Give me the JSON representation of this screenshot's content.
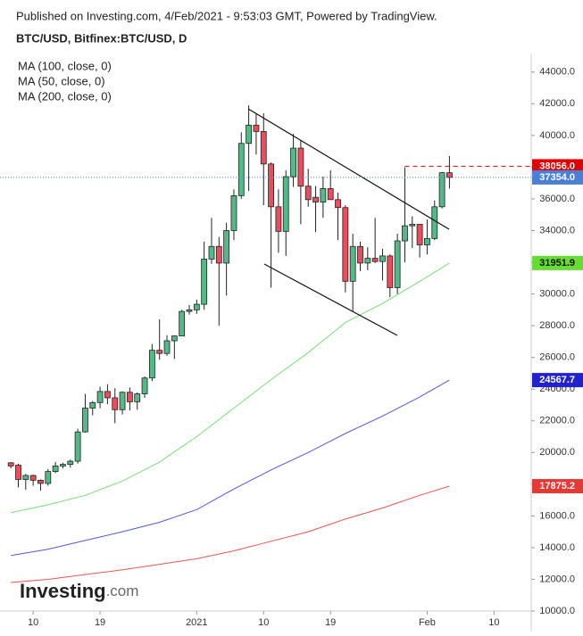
{
  "chart_data": {
    "type": "candlestick",
    "header": "Published on Investing.com, 4/Feb/2021 - 9:53:03 GMT, Powered by TradingView.",
    "title": "BTC/USD, Bitfinex:BTC/USD, D",
    "logo": [
      "Investing",
      ".com"
    ],
    "up_color": "#53b987",
    "down_color": "#eb4d5c",
    "xlim": [
      "2020-12-06T12:00:00Z",
      "2021-02-15T00:00:00Z"
    ],
    "xticks": [
      {
        "value": "2020-12-10",
        "label": "10"
      },
      {
        "value": "2020-12-19",
        "label": "19"
      },
      {
        "value": "2021-01-01",
        "label": "2021"
      },
      {
        "value": "2021-01-10",
        "label": "10"
      },
      {
        "value": "2021-01-19",
        "label": "19"
      },
      {
        "value": "2021-02-01",
        "label": "Feb"
      },
      {
        "value": "2021-02-10",
        "label": "10"
      }
    ],
    "ylim": [
      10000,
      45000
    ],
    "yticks": [
      {
        "value": 10000,
        "label": "10000.0"
      },
      {
        "value": 12000,
        "label": "12000.0"
      },
      {
        "value": 14000,
        "label": "14000.0"
      },
      {
        "value": 16000,
        "label": "16000.0"
      },
      {
        "value": 18000,
        "label": "18000.0"
      },
      {
        "value": 20000,
        "label": "20000.0"
      },
      {
        "value": 22000,
        "label": "22000.0"
      },
      {
        "value": 24000,
        "label": "24000.0"
      },
      {
        "value": 26000,
        "label": "26000.0"
      },
      {
        "value": 28000,
        "label": "28000.0"
      },
      {
        "value": 30000,
        "label": "30000.0"
      },
      {
        "value": 32000,
        "label": "32000.0"
      },
      {
        "value": 34000,
        "label": "34000.0"
      },
      {
        "value": 36000,
        "label": "36000.0"
      },
      {
        "value": 38000,
        "label": "38000.0"
      },
      {
        "value": 40000,
        "label": "40000.0"
      },
      {
        "value": 42000,
        "label": "42000.0"
      },
      {
        "value": 44000,
        "label": "44000.0"
      }
    ],
    "candles": {
      "dates": [
        "2020-12-07",
        "2020-12-08",
        "2020-12-09",
        "2020-12-10",
        "2020-12-11",
        "2020-12-12",
        "2020-12-13",
        "2020-12-14",
        "2020-12-15",
        "2020-12-16",
        "2020-12-17",
        "2020-12-18",
        "2020-12-19",
        "2020-12-20",
        "2020-12-21",
        "2020-12-22",
        "2020-12-23",
        "2020-12-24",
        "2020-12-25",
        "2020-12-26",
        "2020-12-27",
        "2020-12-28",
        "2020-12-29",
        "2020-12-30",
        "2020-12-31",
        "2021-01-01",
        "2021-01-02",
        "2021-01-03",
        "2021-01-04",
        "2021-01-05",
        "2021-01-06",
        "2021-01-07",
        "2021-01-08",
        "2021-01-09",
        "2021-01-10",
        "2021-01-11",
        "2021-01-12",
        "2021-01-13",
        "2021-01-14",
        "2021-01-15",
        "2021-01-16",
        "2021-01-17",
        "2021-01-18",
        "2021-01-19",
        "2021-01-20",
        "2021-01-21",
        "2021-01-22",
        "2021-01-23",
        "2021-01-24",
        "2021-01-25",
        "2021-01-26",
        "2021-01-27",
        "2021-01-28",
        "2021-01-29",
        "2021-01-30",
        "2021-01-31",
        "2021-02-01",
        "2021-02-02",
        "2021-02-03",
        "2021-02-04"
      ],
      "open": [
        19350,
        19200,
        18300,
        18550,
        18250,
        18050,
        18800,
        19150,
        19250,
        19450,
        21300,
        22800,
        23150,
        23850,
        23450,
        22700,
        23800,
        23200,
        23700,
        24700,
        26450,
        26250,
        27050,
        27350,
        28900,
        29000,
        29350,
        32200,
        33000,
        31950,
        34000,
        36200,
        39500,
        40650,
        40250,
        38200,
        35500,
        33950,
        37400,
        39200,
        36800,
        36100,
        35800,
        36650,
        35950,
        35450,
        30800,
        33000,
        31950,
        32250,
        32050,
        32400,
        30400,
        33350,
        34300,
        34400,
        33100,
        33500,
        35500,
        37650
      ],
      "high": [
        19400,
        19300,
        18650,
        18600,
        18300,
        18950,
        19400,
        19350,
        19550,
        21500,
        23700,
        23250,
        24150,
        24300,
        24050,
        23850,
        24100,
        23800,
        24800,
        26850,
        28400,
        27400,
        27400,
        29000,
        29300,
        29650,
        33300,
        34800,
        33600,
        34500,
        36600,
        40200,
        41900,
        41350,
        41400,
        38300,
        36600,
        37800,
        40100,
        39700,
        37900,
        36800,
        37400,
        37800,
        36400,
        35600,
        33800,
        33300,
        32950,
        34800,
        32850,
        32500,
        33800,
        38000,
        34900,
        34400,
        34700,
        35900,
        37700,
        38700
      ],
      "low": [
        19000,
        17800,
        17650,
        17900,
        17600,
        17900,
        18700,
        19000,
        19050,
        19300,
        21250,
        22350,
        22800,
        23050,
        21850,
        22400,
        22650,
        22700,
        23450,
        24500,
        25850,
        26100,
        25900,
        27350,
        28700,
        28750,
        29000,
        31900,
        28000,
        29900,
        33400,
        36000,
        36500,
        38800,
        35600,
        30400,
        32600,
        32400,
        36750,
        34400,
        35500,
        33900,
        34800,
        35950,
        33400,
        30100,
        28900,
        31450,
        31500,
        31950,
        30850,
        29800,
        30000,
        32000,
        32900,
        32300,
        32500,
        33400,
        35400,
        36650
      ],
      "close": [
        19150,
        18300,
        18550,
        18250,
        18050,
        18800,
        19150,
        19250,
        19450,
        21300,
        22800,
        23150,
        23850,
        23450,
        22700,
        23800,
        23200,
        23700,
        24700,
        26450,
        26250,
        27050,
        27350,
        28900,
        29000,
        29350,
        32200,
        33000,
        31950,
        34000,
        36200,
        39500,
        40650,
        40250,
        38200,
        35500,
        33950,
        37400,
        39200,
        36800,
        35950,
        35800,
        36650,
        35950,
        35450,
        30800,
        33000,
        31950,
        32250,
        32050,
        32400,
        30400,
        33350,
        34300,
        34400,
        33100,
        33500,
        35500,
        37650,
        37354
      ]
    },
    "lines": [
      {
        "name": "MA (100, close, 0)",
        "color": "#5555dd",
        "dates": [
          "2020-12-07",
          "2020-12-12",
          "2020-12-17",
          "2020-12-22",
          "2020-12-27",
          "2021-01-01",
          "2021-01-06",
          "2021-01-11",
          "2021-01-16",
          "2021-01-21",
          "2021-01-26",
          "2021-01-31",
          "2021-02-04"
        ],
        "values": [
          13500,
          13900,
          14450,
          15000,
          15600,
          16400,
          17700,
          18900,
          20000,
          21200,
          22300,
          23500,
          24567.7
        ]
      },
      {
        "name": "MA (50, close, 0)",
        "color": "#77e077",
        "dates": [
          "2020-12-07",
          "2020-12-12",
          "2020-12-17",
          "2020-12-22",
          "2020-12-27",
          "2021-01-01",
          "2021-01-06",
          "2021-01-11",
          "2021-01-16",
          "2021-01-21",
          "2021-01-26",
          "2021-01-31",
          "2021-02-04"
        ],
        "values": [
          16200,
          16700,
          17300,
          18200,
          19400,
          21000,
          22800,
          24600,
          26300,
          28200,
          29400,
          30800,
          31951.9
        ]
      },
      {
        "name": "MA (200, close, 0)",
        "color": "#ef5350",
        "dates": [
          "2020-12-07",
          "2020-12-12",
          "2020-12-17",
          "2020-12-22",
          "2020-12-27",
          "2021-01-01",
          "2021-01-06",
          "2021-01-11",
          "2021-01-16",
          "2021-01-21",
          "2021-01-26",
          "2021-01-31",
          "2021-02-04"
        ],
        "values": [
          11800,
          12000,
          12300,
          12600,
          12950,
          13300,
          13800,
          14400,
          15000,
          15800,
          16500,
          17300,
          17875.2
        ]
      }
    ],
    "line_label_colors": [
      "#2222cc",
      "#66dd33",
      "#e53935"
    ],
    "markers": [
      {
        "value": 38056,
        "label": "38056.0",
        "color": "#e00000",
        "start": "2021-01-29"
      },
      {
        "value": 37354,
        "label": "37354.0",
        "color": "#4a7fd4"
      }
    ]
  }
}
